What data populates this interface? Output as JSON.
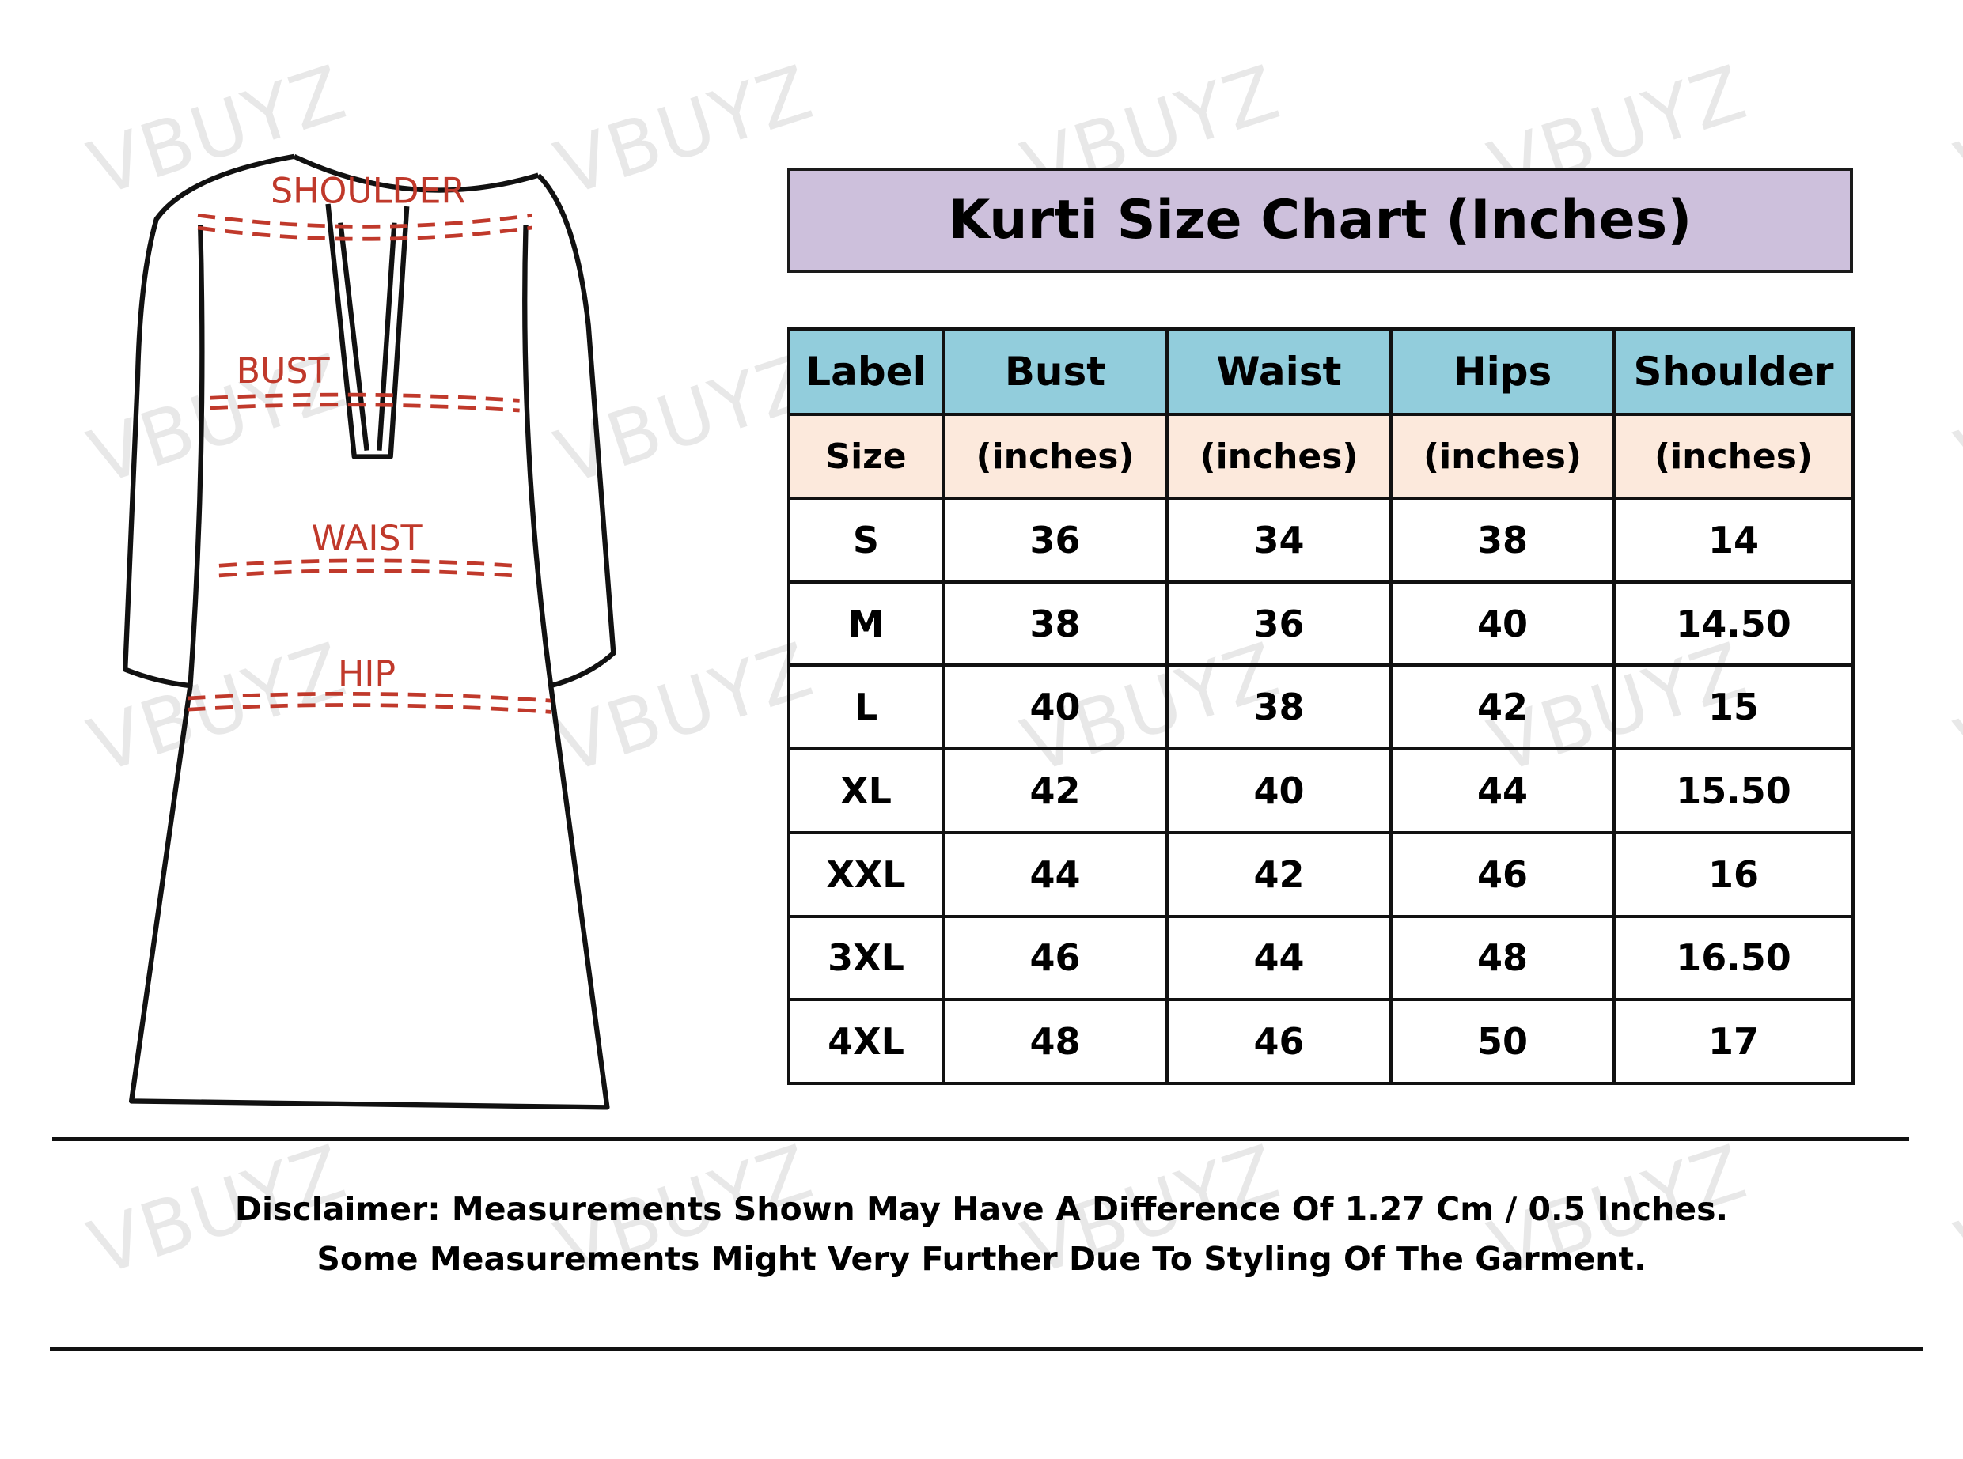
{
  "watermark": "VBUYZ",
  "diagram": {
    "labels": [
      "SHOULDER",
      "BUST",
      "WAIST",
      "HIP"
    ],
    "label_color": "#c0392b"
  },
  "title": "Kurti Size Chart (Inches)",
  "colors": {
    "title_bg": "#cdc0dc",
    "header_bg": "#92cddc",
    "units_bg": "#fce9dc"
  },
  "table": {
    "headers": [
      "Label",
      "Bust",
      "Waist",
      "Hips",
      "Shoulder"
    ],
    "units": [
      "Size",
      "(inches)",
      "(inches)",
      "(inches)",
      "(inches)"
    ],
    "rows": [
      [
        "S",
        "36",
        "34",
        "38",
        "14"
      ],
      [
        "M",
        "38",
        "36",
        "40",
        "14.50"
      ],
      [
        "L",
        "40",
        "38",
        "42",
        "15"
      ],
      [
        "XL",
        "42",
        "40",
        "44",
        "15.50"
      ],
      [
        "XXL",
        "44",
        "42",
        "46",
        "16"
      ],
      [
        "3XL",
        "46",
        "44",
        "48",
        "16.50"
      ],
      [
        "4XL",
        "48",
        "46",
        "50",
        "17"
      ]
    ]
  },
  "disclaimer": {
    "line1": "Disclaimer: Measurements Shown May Have A Difference Of 1.27 Cm / 0.5 Inches.",
    "line2": "Some Measurements Might Very Further Due To Styling Of The Garment."
  }
}
